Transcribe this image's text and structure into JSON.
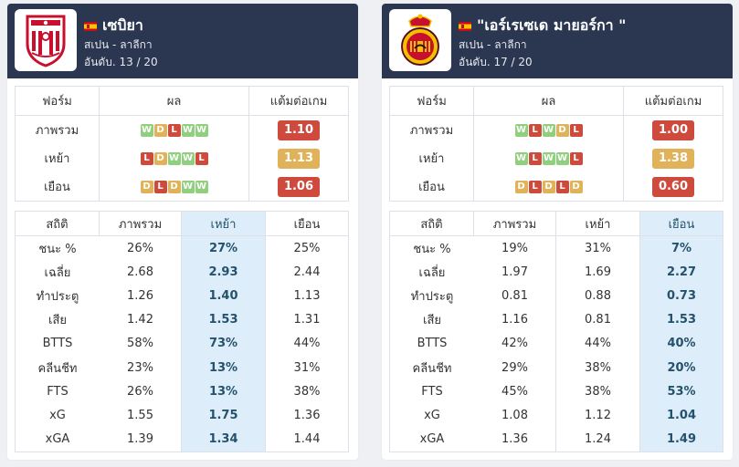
{
  "colors": {
    "header_bg": "#2b3650",
    "win": "#8fcf7e",
    "draw": "#e0b35b",
    "loss": "#cd4a3c",
    "highlight": "#ddeefa"
  },
  "teams": [
    {
      "name": "เซบิยา",
      "crest": "sevilla-crest-icon",
      "flag": "spain-flag-icon",
      "league": "สเปน - ลาลีกา",
      "rank": "อันดับ. 13 / 20",
      "form_headers": [
        "ฟอร์ม",
        "ผล",
        "แต้มต่อเกม"
      ],
      "form_rows": [
        {
          "label": "ภาพรวม",
          "results": [
            "W",
            "D",
            "L",
            "W",
            "W"
          ],
          "ppg": "1.10",
          "ppg_color": "#cd4a3c"
        },
        {
          "label": "เหย้า",
          "results": [
            "L",
            "D",
            "W",
            "W",
            "L"
          ],
          "ppg": "1.13",
          "ppg_color": "#e0b35b"
        },
        {
          "label": "เยือน",
          "results": [
            "D",
            "L",
            "D",
            "W",
            "W"
          ],
          "ppg": "1.06",
          "ppg_color": "#cd4a3c"
        }
      ],
      "stats_headers": [
        "สถิติ",
        "ภาพรวม",
        "เหย้า",
        "เยือน"
      ],
      "highlight_col": 2,
      "stats_rows": [
        {
          "label": "ชนะ %",
          "values": [
            "26%",
            "27%",
            "25%"
          ]
        },
        {
          "label": "เฉลี่ย",
          "values": [
            "2.68",
            "2.93",
            "2.44"
          ]
        },
        {
          "label": "ทำประตู",
          "values": [
            "1.26",
            "1.40",
            "1.13"
          ]
        },
        {
          "label": "เสีย",
          "values": [
            "1.42",
            "1.53",
            "1.31"
          ]
        },
        {
          "label": "BTTS",
          "values": [
            "58%",
            "73%",
            "44%"
          ]
        },
        {
          "label": "คลีนชีท",
          "values": [
            "23%",
            "13%",
            "31%"
          ]
        },
        {
          "label": "FTS",
          "values": [
            "26%",
            "13%",
            "38%"
          ]
        },
        {
          "label": "xG",
          "values": [
            "1.55",
            "1.75",
            "1.36"
          ]
        },
        {
          "label": "xGA",
          "values": [
            "1.39",
            "1.34",
            "1.44"
          ]
        }
      ]
    },
    {
      "name": "\"เอร์เรเซเด มายอร์กา \"",
      "crest": "mallorca-crest-icon",
      "flag": "spain-flag-icon",
      "league": "สเปน - ลาลีกา",
      "rank": "อันดับ. 17 / 20",
      "form_headers": [
        "ฟอร์ม",
        "ผล",
        "แต้มต่อเกม"
      ],
      "form_rows": [
        {
          "label": "ภาพรวม",
          "results": [
            "W",
            "L",
            "W",
            "D",
            "L"
          ],
          "ppg": "1.00",
          "ppg_color": "#cd4a3c"
        },
        {
          "label": "เหย้า",
          "results": [
            "W",
            "L",
            "W",
            "W",
            "L"
          ],
          "ppg": "1.38",
          "ppg_color": "#e0b35b"
        },
        {
          "label": "เยือน",
          "results": [
            "D",
            "L",
            "D",
            "L",
            "D"
          ],
          "ppg": "0.60",
          "ppg_color": "#cd4a3c"
        }
      ],
      "stats_headers": [
        "สถิติ",
        "ภาพรวม",
        "เหย้า",
        "เยือน"
      ],
      "highlight_col": 3,
      "stats_rows": [
        {
          "label": "ชนะ %",
          "values": [
            "19%",
            "31%",
            "7%"
          ]
        },
        {
          "label": "เฉลี่ย",
          "values": [
            "1.97",
            "1.69",
            "2.27"
          ]
        },
        {
          "label": "ทำประตู",
          "values": [
            "0.81",
            "0.88",
            "0.73"
          ]
        },
        {
          "label": "เสีย",
          "values": [
            "1.16",
            "0.81",
            "1.53"
          ]
        },
        {
          "label": "BTTS",
          "values": [
            "42%",
            "44%",
            "40%"
          ]
        },
        {
          "label": "คลีนชีท",
          "values": [
            "29%",
            "38%",
            "20%"
          ]
        },
        {
          "label": "FTS",
          "values": [
            "45%",
            "38%",
            "53%"
          ]
        },
        {
          "label": "xG",
          "values": [
            "1.08",
            "1.12",
            "1.04"
          ]
        },
        {
          "label": "xGA",
          "values": [
            "1.36",
            "1.24",
            "1.49"
          ]
        }
      ]
    }
  ]
}
